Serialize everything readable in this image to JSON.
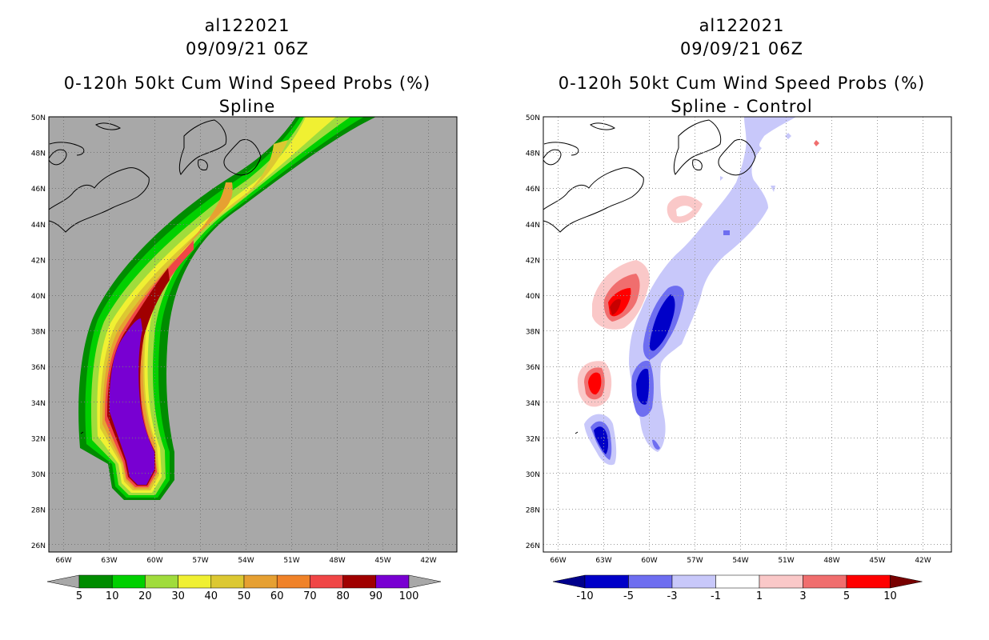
{
  "left": {
    "header": {
      "storm_id": "al122021",
      "datetime": "09/09/21 06Z",
      "product": "0-120h 50kt Cum Wind Speed Probs (%)",
      "subtitle": "Spline"
    },
    "lat_labels": [
      "50N",
      "48N",
      "46N",
      "44N",
      "42N",
      "40N",
      "38N",
      "36N",
      "34N",
      "32N",
      "30N",
      "28N",
      "26N"
    ],
    "lon_labels": [
      "66W",
      "63W",
      "60W",
      "57W",
      "54W",
      "51W",
      "48W",
      "45W",
      "42W"
    ],
    "colorbar": {
      "labels": [
        "5",
        "10",
        "20",
        "30",
        "40",
        "50",
        "60",
        "70",
        "80",
        "90",
        "100"
      ],
      "colors": [
        "#008c00",
        "#00d000",
        "#a0dc3c",
        "#f0f032",
        "#dcc832",
        "#e6a032",
        "#f08228",
        "#f04646",
        "#a00000",
        "#7800d2"
      ]
    }
  },
  "right": {
    "header": {
      "storm_id": "al122021",
      "datetime": "09/09/21 06Z",
      "product": "0-120h 50kt Cum Wind Speed Probs (%)",
      "subtitle": "Spline - Control"
    },
    "lat_labels": [
      "50N",
      "48N",
      "46N",
      "44N",
      "42N",
      "40N",
      "38N",
      "36N",
      "34N",
      "32N",
      "30N",
      "28N",
      "26N"
    ],
    "lon_labels": [
      "66W",
      "63W",
      "60W",
      "57W",
      "54W",
      "51W",
      "48W",
      "45W",
      "42W"
    ],
    "colorbar": {
      "labels": [
        "-10",
        "-5",
        "-3",
        "-1",
        "1",
        "3",
        "5",
        "10"
      ],
      "colors": [
        "#0000c8",
        "#6e6ef0",
        "#c8c8fa",
        "#ffffff",
        "#fac8c8",
        "#f06e6e",
        "#ff0000"
      ]
    }
  },
  "colors": {
    "map_background": "#a8a8a8",
    "coast": "#000000"
  }
}
